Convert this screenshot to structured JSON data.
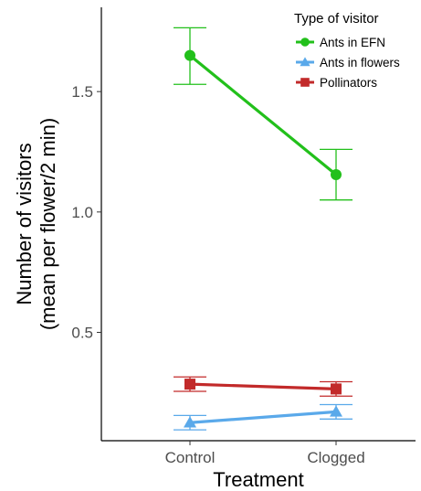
{
  "chart_data": {
    "type": "line",
    "title": "",
    "xlabel": "Treatment",
    "ylabel_line1": "Number of visitors",
    "ylabel_line2": "(mean per flower/2 min)",
    "categories": [
      "Control",
      "Clogged"
    ],
    "ylim": [
      0.05,
      1.85
    ],
    "yticks": [
      0.5,
      1.0,
      1.5
    ],
    "ytick_labels": [
      "0.5",
      "1.0",
      "1.5"
    ],
    "grid": false,
    "legend": {
      "title": "Type of visitor",
      "placement": "top-right"
    },
    "series": [
      {
        "name": "Ants in EFN",
        "color": "#22c01b",
        "marker": "circle",
        "values": [
          1.65,
          1.155
        ],
        "error_low": [
          1.53,
          1.05
        ],
        "error_high": [
          1.765,
          1.26
        ]
      },
      {
        "name": "Ants in flowers",
        "color": "#5aa9ea",
        "marker": "triangle",
        "values": [
          0.125,
          0.17
        ],
        "error_low": [
          0.095,
          0.14
        ],
        "error_high": [
          0.155,
          0.2
        ]
      },
      {
        "name": "Pollinators",
        "color": "#c22a2a",
        "marker": "square",
        "values": [
          0.285,
          0.265
        ],
        "error_low": [
          0.255,
          0.235
        ],
        "error_high": [
          0.315,
          0.295
        ]
      }
    ]
  }
}
